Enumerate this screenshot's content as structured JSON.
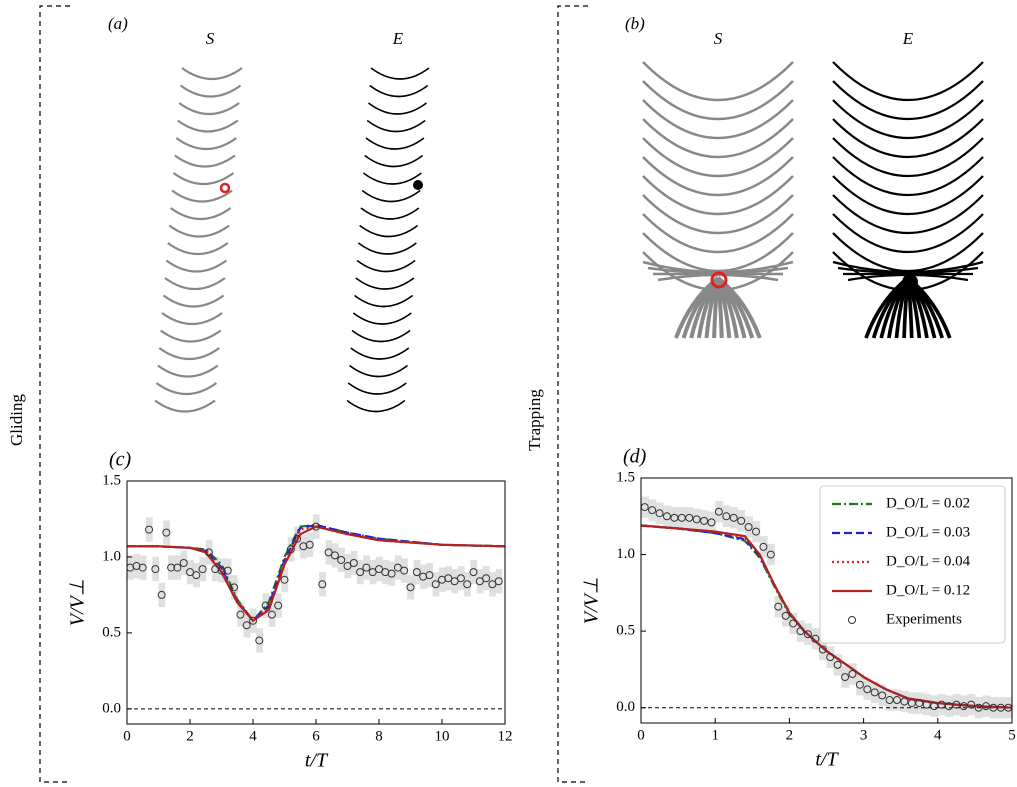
{
  "sections": [
    {
      "label": "Gliding"
    },
    {
      "label": "Trapping"
    }
  ],
  "diagrams": [
    {
      "panel_label": "(a)",
      "left": "S",
      "right": "E"
    },
    {
      "panel_label": "(b)",
      "left": "S",
      "right": "E"
    }
  ],
  "chart_data": [
    {
      "type": "line",
      "panel_label": "(c)",
      "xlabel": "t/T",
      "ylabel": "V/V⊥",
      "xlim": [
        0,
        12
      ],
      "ylim": [
        -0.1,
        1.5
      ],
      "xticks": [
        0,
        2,
        4,
        6,
        8,
        10,
        12
      ],
      "yticks": [
        {
          "value": 0,
          "label": "0.0"
        },
        {
          "value": 0.5,
          "label": "0.5"
        },
        {
          "value": 1,
          "label": "1.0"
        },
        {
          "value": 1.5,
          "label": "1.5"
        }
      ],
      "reference_line": 0,
      "x": [
        0,
        1,
        2,
        2.5,
        3,
        3.5,
        4,
        4.5,
        5,
        5.5,
        6,
        7,
        8,
        10,
        12
      ],
      "series": [
        {
          "color": "#1a7a1a",
          "dash": "dashdot",
          "values": [
            1.07,
            1.07,
            1.06,
            1.05,
            0.95,
            0.72,
            0.58,
            0.7,
            1.0,
            1.2,
            1.21,
            1.16,
            1.12,
            1.08,
            1.07
          ]
        },
        {
          "color": "#1f1fe0",
          "dash": "dashed",
          "values": [
            1.07,
            1.07,
            1.06,
            1.04,
            0.93,
            0.71,
            0.58,
            0.68,
            0.98,
            1.19,
            1.21,
            1.16,
            1.12,
            1.08,
            1.07
          ]
        },
        {
          "color": "#e02020",
          "dash": "dotted",
          "values": [
            1.07,
            1.07,
            1.06,
            1.04,
            0.92,
            0.71,
            0.58,
            0.67,
            0.97,
            1.18,
            1.2,
            1.15,
            1.11,
            1.08,
            1.07
          ]
        },
        {
          "color": "#b22222",
          "dash": "solid",
          "values": [
            1.07,
            1.07,
            1.06,
            1.03,
            0.9,
            0.7,
            0.58,
            0.65,
            0.95,
            1.15,
            1.2,
            1.15,
            1.11,
            1.08,
            1.07
          ]
        },
        {
          "type": "scatter",
          "error": 0.08,
          "x": [
            0.1,
            0.3,
            0.5,
            0.7,
            0.9,
            1.1,
            1.25,
            1.4,
            1.6,
            1.8,
            2.0,
            2.2,
            2.4,
            2.6,
            2.8,
            3.0,
            3.2,
            3.4,
            3.6,
            3.8,
            4.0,
            4.2,
            4.4,
            4.6,
            4.8,
            5.0,
            5.2,
            5.4,
            5.6,
            5.8,
            6.0,
            6.2,
            6.4,
            6.6,
            6.8,
            7.0,
            7.2,
            7.4,
            7.6,
            7.8,
            8.0,
            8.2,
            8.4,
            8.6,
            8.8,
            9.0,
            9.2,
            9.4,
            9.6,
            9.8,
            10.0,
            10.2,
            10.4,
            10.6,
            10.8,
            11.0,
            11.2,
            11.4,
            11.6,
            11.8
          ],
          "values": [
            0.93,
            0.94,
            0.93,
            1.18,
            0.92,
            0.75,
            1.16,
            0.93,
            0.93,
            0.96,
            0.9,
            0.88,
            0.92,
            1.03,
            0.92,
            0.91,
            0.91,
            0.8,
            0.62,
            0.55,
            0.58,
            0.45,
            0.68,
            0.62,
            0.68,
            0.85,
            1.05,
            1.12,
            1.07,
            1.08,
            1.2,
            0.82,
            1.03,
            1.01,
            0.98,
            0.94,
            0.96,
            0.9,
            0.93,
            0.9,
            0.92,
            0.9,
            0.89,
            0.93,
            0.91,
            0.8,
            0.9,
            0.87,
            0.88,
            0.82,
            0.85,
            0.86,
            0.84,
            0.86,
            0.82,
            0.9,
            0.84,
            0.86,
            0.82,
            0.84
          ]
        }
      ]
    },
    {
      "type": "line",
      "panel_label": "(d)",
      "xlabel": "t/T",
      "ylabel": "V/V⊥",
      "xlim": [
        0,
        5
      ],
      "ylim": [
        -0.1,
        1.5
      ],
      "xticks": [
        0,
        1,
        2,
        3,
        4,
        5
      ],
      "yticks": [
        {
          "value": 0,
          "label": "0.0"
        },
        {
          "value": 0.5,
          "label": "0.5"
        },
        {
          "value": 1,
          "label": "1.0"
        },
        {
          "value": 1.5,
          "label": "1.5"
        }
      ],
      "reference_line": 0,
      "legend": "upper right",
      "x": [
        0,
        0.5,
        1,
        1.4,
        1.6,
        1.8,
        2,
        2.2,
        2.5,
        2.8,
        3,
        3.3,
        3.6,
        4,
        4.5,
        5
      ],
      "series": [
        {
          "name": "D_O/L = 0.02",
          "color": "#1a7a1a",
          "dash": "dashdot",
          "values": [
            1.19,
            1.17,
            1.14,
            1.09,
            0.98,
            0.79,
            0.61,
            0.5,
            0.37,
            0.27,
            0.2,
            0.12,
            0.06,
            0.03,
            0.01,
            0.0
          ]
        },
        {
          "name": "D_O/L = 0.03",
          "color": "#1f1fe0",
          "dash": "dashed",
          "values": [
            1.19,
            1.17,
            1.14,
            1.1,
            0.99,
            0.8,
            0.62,
            0.5,
            0.37,
            0.27,
            0.2,
            0.12,
            0.06,
            0.03,
            0.01,
            0.0
          ]
        },
        {
          "name": "D_O/L = 0.04",
          "color": "#e02020",
          "dash": "dotted",
          "values": [
            1.19,
            1.17,
            1.15,
            1.11,
            1.0,
            0.8,
            0.62,
            0.5,
            0.37,
            0.27,
            0.2,
            0.12,
            0.06,
            0.03,
            0.01,
            0.0
          ]
        },
        {
          "name": "D_O/L = 0.12",
          "color": "#b22222",
          "dash": "solid",
          "values": [
            1.19,
            1.17,
            1.15,
            1.12,
            1.0,
            0.8,
            0.62,
            0.5,
            0.37,
            0.27,
            0.2,
            0.12,
            0.06,
            0.03,
            0.01,
            0.0
          ]
        },
        {
          "name": "Experiments",
          "type": "scatter",
          "error": 0.07,
          "x": [
            0.05,
            0.15,
            0.25,
            0.35,
            0.45,
            0.55,
            0.65,
            0.75,
            0.85,
            0.95,
            1.05,
            1.15,
            1.25,
            1.35,
            1.45,
            1.55,
            1.65,
            1.75,
            1.85,
            1.95,
            2.05,
            2.15,
            2.25,
            2.35,
            2.45,
            2.55,
            2.65,
            2.75,
            2.85,
            2.95,
            3.05,
            3.15,
            3.25,
            3.35,
            3.45,
            3.55,
            3.65,
            3.75,
            3.85,
            3.95,
            4.05,
            4.15,
            4.25,
            4.35,
            4.45,
            4.55,
            4.65,
            4.75,
            4.85,
            4.95
          ],
          "values": [
            1.31,
            1.29,
            1.27,
            1.25,
            1.24,
            1.24,
            1.24,
            1.23,
            1.22,
            1.21,
            1.28,
            1.25,
            1.24,
            1.22,
            1.18,
            1.15,
            1.05,
            1.0,
            0.66,
            0.6,
            0.55,
            0.5,
            0.48,
            0.45,
            0.38,
            0.33,
            0.28,
            0.2,
            0.22,
            0.15,
            0.12,
            0.1,
            0.08,
            0.05,
            0.05,
            0.04,
            0.03,
            0.03,
            0.02,
            0.01,
            0.02,
            0.01,
            0.02,
            0.01,
            0.02,
            0.0,
            0.01,
            0.0,
            0.0,
            0.0
          ]
        }
      ]
    }
  ]
}
